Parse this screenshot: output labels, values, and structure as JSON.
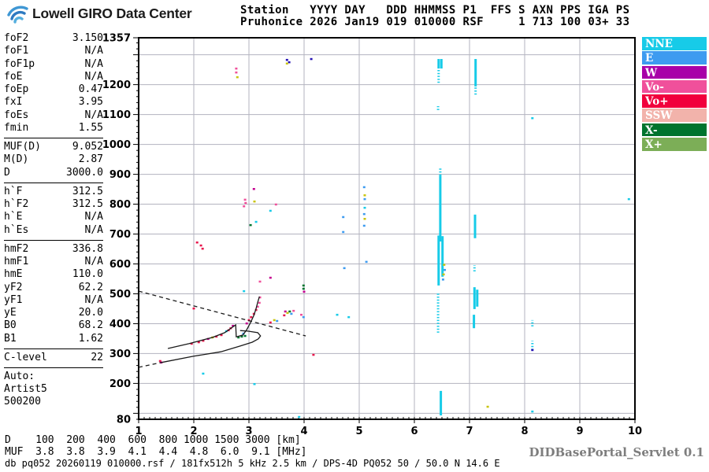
{
  "logo": {
    "text": "Lowell GIRO Data Center"
  },
  "station_block": "Station   YYYY DAY   DDD HHMMSS P1  FFS S AXN PPS IGA PS\nPruhonice 2026 Jan19 019 010000 RSF     1 713 100 03+ 33",
  "left_panel": {
    "groups": [
      {
        "rows": [
          {
            "label": "foF2",
            "value": "3.150"
          },
          {
            "label": "foF1",
            "value": "N/A"
          },
          {
            "label": "foF1p",
            "value": "N/A"
          },
          {
            "label": "foE",
            "value": "N/A"
          },
          {
            "label": "foEp",
            "value": "0.47"
          },
          {
            "label": "fxI",
            "value": "3.95"
          },
          {
            "label": "foEs",
            "value": "N/A"
          },
          {
            "label": "fmin",
            "value": "1.55"
          }
        ]
      },
      {
        "rows": [
          {
            "label": "MUF(D)",
            "value": "9.052"
          },
          {
            "label": "M(D)",
            "value": "2.87"
          },
          {
            "label": "D",
            "value": "3000.0"
          }
        ]
      },
      {
        "rows": [
          {
            "label": "h`F",
            "value": "312.5"
          },
          {
            "label": "h`F2",
            "value": "312.5"
          },
          {
            "label": "h`E",
            "value": "N/A"
          },
          {
            "label": "h`Es",
            "value": "N/A"
          }
        ]
      },
      {
        "rows": [
          {
            "label": "hmF2",
            "value": "336.8"
          },
          {
            "label": "hmF1",
            "value": "N/A"
          },
          {
            "label": "hmE",
            "value": "110.0"
          },
          {
            "label": "yF2",
            "value": "62.2"
          },
          {
            "label": "yF1",
            "value": "N/A"
          },
          {
            "label": "yE",
            "value": "20.0"
          },
          {
            "label": "B0",
            "value": "68.2"
          },
          {
            "label": "B1",
            "value": "1.62"
          }
        ]
      }
    ],
    "c_level": {
      "label": "C-level",
      "value": "22"
    },
    "auto_lines": [
      "Auto:",
      "Artist5",
      "500200"
    ]
  },
  "legend": {
    "items": [
      {
        "label": "NNE",
        "color": "#17cbe8"
      },
      {
        "label": "E",
        "color": "#3d9bf0"
      },
      {
        "label": "W",
        "color": "#a800a8"
      },
      {
        "label": "Vo-",
        "color": "#f0509b"
      },
      {
        "label": "Vo+",
        "color": "#f1003c"
      },
      {
        "label": "SSW",
        "color": "#f2b3ab"
      },
      {
        "label": "X-",
        "color": "#00742e"
      },
      {
        "label": "X+",
        "color": "#7cae57"
      }
    ]
  },
  "bottom_table": "D    100  200  400  600  800 1000 1500 3000 [km]\nMUF  3.8  3.8  3.9  4.1  4.4  4.8  6.0  9.1 [MHz]",
  "status_line": "db pq052 20260119 010000.rsf / 181fx512h 5 kHz 2.5 km / DPS-4D PQ052 50 / 50.0 N 14.6 E",
  "servlet_label": "DIDBasePortal_Servlet 0.1",
  "chart_data": {
    "type": "scatter",
    "title": "Pruhonice ionogram 2026 Jan19 019 010000",
    "xlabel": "[MHz]",
    "ylabel": "[km]",
    "x_axis": {
      "min": 1,
      "max": 10,
      "ticks": [
        1,
        2,
        3,
        4,
        5,
        6,
        7,
        8,
        9,
        10
      ],
      "minor_step": 0.1
    },
    "y_axis": {
      "min": 80,
      "max": 1357,
      "tick_labels": [
        1357,
        1200,
        1100,
        1000,
        900,
        800,
        700,
        600,
        500,
        400,
        300,
        200,
        80
      ],
      "grid_step": 100,
      "minor_step": 20
    },
    "grid": true,
    "colors": {
      "c": "#17cbe8",
      "b": "#3d9bf0",
      "n": "#2512b5",
      "m": "#c4008f",
      "p": "#f0509b",
      "r": "#e8174c",
      "y": "#c9c40e",
      "g": "#00742e",
      "l": "#7cae57"
    },
    "echoes": {
      "segments": [
        [
          6.44,
          1254,
          1286,
          "c",
          "solid"
        ],
        [
          6.49,
          1254,
          1286,
          "c",
          "solid"
        ],
        [
          6.44,
          1206,
          1254,
          "c",
          "dotted"
        ],
        [
          6.43,
          1115,
          1128,
          "c",
          "dotted"
        ],
        [
          6.47,
          896,
          925,
          "c",
          "dotted"
        ],
        [
          6.47,
          675,
          896,
          "c",
          "solid"
        ],
        [
          6.44,
          528,
          695,
          "c",
          "solid"
        ],
        [
          6.51,
          557,
          693,
          "c",
          "solid"
        ],
        [
          6.43,
          370,
          504,
          "c",
          "dotted"
        ],
        [
          6.48,
          93,
          175,
          "c",
          "solid"
        ],
        [
          7.11,
          1194,
          1286,
          "c",
          "solid"
        ],
        [
          7.11,
          1167,
          1194,
          "c",
          "dotted"
        ],
        [
          7.1,
          686,
          765,
          "c",
          "solid"
        ],
        [
          7.09,
          575,
          596,
          "c",
          "dotted"
        ],
        [
          7.09,
          449,
          522,
          "c",
          "solid"
        ],
        [
          7.14,
          457,
          514,
          "c",
          "solid"
        ],
        [
          7.08,
          385,
          430,
          "c",
          "solid"
        ],
        [
          8.14,
          391,
          412,
          "c",
          "dotted"
        ],
        [
          8.14,
          312,
          343,
          "c",
          "dotted"
        ]
      ],
      "points": [
        [
          3.69,
          1283,
          "n"
        ],
        [
          3.73,
          1275,
          "n"
        ],
        [
          3.69,
          1271,
          "y"
        ],
        [
          4.13,
          1286,
          "n"
        ],
        [
          2.77,
          1254,
          "p"
        ],
        [
          2.77,
          1241,
          "p"
        ],
        [
          2.79,
          1225,
          "y"
        ],
        [
          3.09,
          851,
          "m"
        ],
        [
          2.93,
          815,
          "p"
        ],
        [
          2.94,
          804,
          "p"
        ],
        [
          2.91,
          793,
          "p"
        ],
        [
          3.1,
          809,
          "y"
        ],
        [
          3.49,
          799,
          "p"
        ],
        [
          3.39,
          778,
          "c"
        ],
        [
          3.13,
          741,
          "c"
        ],
        [
          3.03,
          730,
          "g"
        ],
        [
          5.09,
          857,
          "b"
        ],
        [
          5.1,
          830,
          "y"
        ],
        [
          5.1,
          817,
          "b"
        ],
        [
          5.1,
          788,
          "c"
        ],
        [
          5.09,
          767,
          "b"
        ],
        [
          5.1,
          751,
          "y"
        ],
        [
          5.09,
          728,
          "b"
        ],
        [
          4.71,
          757,
          "b"
        ],
        [
          4.71,
          707,
          "b"
        ],
        [
          4.73,
          586,
          "b"
        ],
        [
          5.13,
          607,
          "b"
        ],
        [
          6.53,
          565,
          "y"
        ],
        [
          6.55,
          580,
          "b"
        ],
        [
          6.54,
          597,
          "y"
        ],
        [
          6.52,
          548,
          "b"
        ],
        [
          3.39,
          554,
          "m"
        ],
        [
          3.2,
          541,
          "p"
        ],
        [
          3.99,
          528,
          "g"
        ],
        [
          3.99,
          517,
          "g"
        ],
        [
          4.0,
          507,
          "m"
        ],
        [
          2.91,
          509,
          "c"
        ],
        [
          3.2,
          488,
          "p"
        ],
        [
          3.66,
          441,
          "m"
        ],
        [
          3.7,
          436,
          "y"
        ],
        [
          3.74,
          441,
          "g"
        ],
        [
          3.77,
          433,
          "b"
        ],
        [
          3.81,
          443,
          "p"
        ],
        [
          3.64,
          428,
          "r"
        ],
        [
          3.95,
          430,
          "p"
        ],
        [
          3.99,
          422,
          "b"
        ],
        [
          3.46,
          412,
          "y"
        ],
        [
          3.51,
          409,
          "b"
        ],
        [
          3.39,
          404,
          "r"
        ],
        [
          4.6,
          430,
          "c"
        ],
        [
          4.81,
          422,
          "c"
        ],
        [
          2.06,
          672,
          "r"
        ],
        [
          2.13,
          662,
          "r"
        ],
        [
          2.16,
          651,
          "r"
        ],
        [
          2.0,
          451,
          "r"
        ],
        [
          1.39,
          275,
          "r"
        ],
        [
          1.41,
          270,
          "m"
        ],
        [
          4.17,
          296,
          "r"
        ],
        [
          2.17,
          233,
          "c"
        ],
        [
          3.1,
          198,
          "c"
        ],
        [
          8.14,
          1088,
          "c"
        ],
        [
          8.14,
          312,
          "n"
        ],
        [
          8.14,
          106,
          "c"
        ],
        [
          9.89,
          817,
          "c"
        ],
        [
          7.33,
          122,
          "y"
        ],
        [
          3.91,
          88,
          "c"
        ],
        [
          1.96,
          333,
          "r"
        ],
        [
          2.09,
          338,
          "r"
        ],
        [
          2.17,
          343,
          "r"
        ],
        [
          2.26,
          349,
          "m"
        ],
        [
          2.34,
          354,
          "y"
        ],
        [
          2.41,
          357,
          "r"
        ],
        [
          2.5,
          362,
          "r"
        ],
        [
          2.59,
          375,
          "c"
        ],
        [
          2.63,
          378,
          "r"
        ],
        [
          2.67,
          385,
          "r"
        ],
        [
          2.71,
          393,
          "m"
        ],
        [
          2.81,
          354,
          "g"
        ],
        [
          2.87,
          357,
          "g"
        ],
        [
          2.93,
          359,
          "g"
        ],
        [
          2.9,
          367,
          "b"
        ],
        [
          2.96,
          401,
          "m"
        ],
        [
          3.0,
          412,
          "r"
        ],
        [
          3.04,
          422,
          "r"
        ],
        [
          3.09,
          433,
          "r"
        ],
        [
          3.13,
          446,
          "r"
        ],
        [
          3.16,
          457,
          "p"
        ],
        [
          3.19,
          470,
          "p"
        ]
      ]
    },
    "traces": {
      "dashed_line": [
        [
          1.0,
          509
        ],
        [
          4.03,
          359
        ]
      ],
      "profile_dashed": [
        [
          1.0,
          254
        ],
        [
          1.41,
          270
        ]
      ],
      "profile": [
        [
          1.41,
          270
        ],
        [
          1.99,
          291
        ],
        [
          2.49,
          306
        ],
        [
          2.84,
          325
        ],
        [
          3.06,
          338
        ],
        [
          3.17,
          349
        ],
        [
          3.21,
          359
        ],
        [
          3.16,
          370
        ],
        [
          2.99,
          375
        ],
        [
          2.84,
          377
        ]
      ],
      "f_trace": [
        [
          1.53,
          317
        ],
        [
          1.91,
          333
        ],
        [
          2.34,
          354
        ],
        [
          2.56,
          370
        ],
        [
          2.76,
          396
        ],
        [
          2.77,
          356
        ],
        [
          2.89,
          362
        ],
        [
          2.96,
          380
        ],
        [
          3.03,
          404
        ],
        [
          3.09,
          428
        ],
        [
          3.13,
          451
        ],
        [
          3.16,
          472
        ],
        [
          3.19,
          491
        ]
      ]
    }
  }
}
